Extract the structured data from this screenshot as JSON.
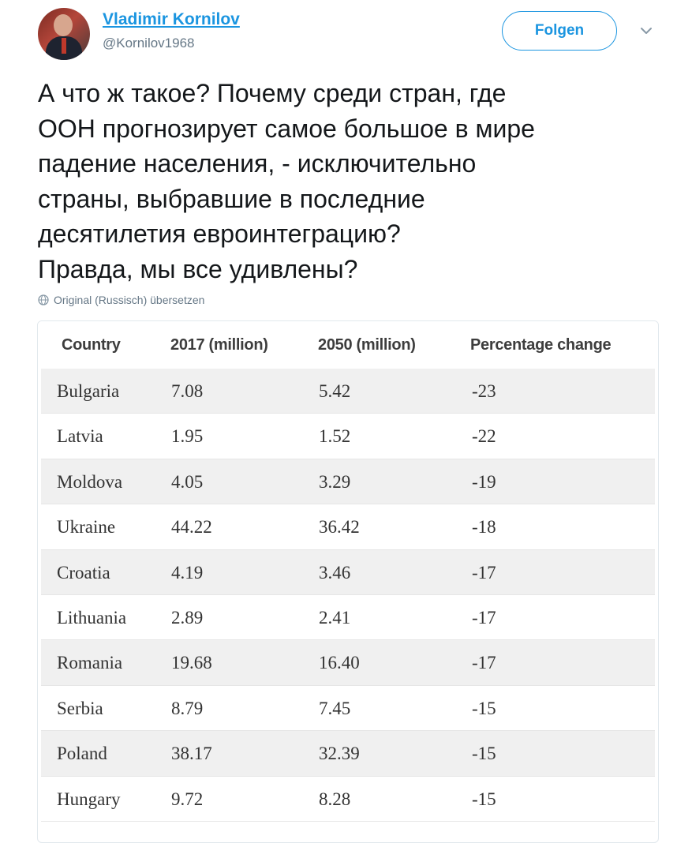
{
  "user": {
    "display_name": "Vladimir Kornilov",
    "handle": "@Kornilov1968",
    "follow_label": "Folgen"
  },
  "tweet": {
    "lines": [
      "А что ж такое? Почему среди стран, где",
      "ООН прогнозирует самое большое в мире",
      "падение населения, - исключительно",
      "страны, выбравшие в последние",
      "десятилетия евроинтеграцию?",
      "Правда, мы все удивлены?"
    ],
    "translate_label": "Original (Russisch) übersetzen"
  },
  "icons": {
    "globe": "globe-icon",
    "caret": "chevron-down-icon"
  },
  "colors": {
    "accent": "#1b95e0",
    "muted": "#657786"
  },
  "table": {
    "headers": [
      "Country",
      "2017 (million)",
      "2050 (million)",
      "Percentage change"
    ],
    "rows": [
      [
        "Bulgaria",
        "7.08",
        "5.42",
        "-23"
      ],
      [
        "Latvia",
        "1.95",
        "1.52",
        "-22"
      ],
      [
        "Moldova",
        "4.05",
        "3.29",
        "-19"
      ],
      [
        "Ukraine",
        "44.22",
        "36.42",
        "-18"
      ],
      [
        "Croatia",
        "4.19",
        "3.46",
        "-17"
      ],
      [
        "Lithuania",
        "2.89",
        "2.41",
        "-17"
      ],
      [
        "Romania",
        "19.68",
        "16.40",
        "-17"
      ],
      [
        "Serbia",
        "8.79",
        "7.45",
        "-15"
      ],
      [
        "Poland",
        "38.17",
        "32.39",
        "-15"
      ],
      [
        "Hungary",
        "9.72",
        "8.28",
        "-15"
      ]
    ]
  }
}
